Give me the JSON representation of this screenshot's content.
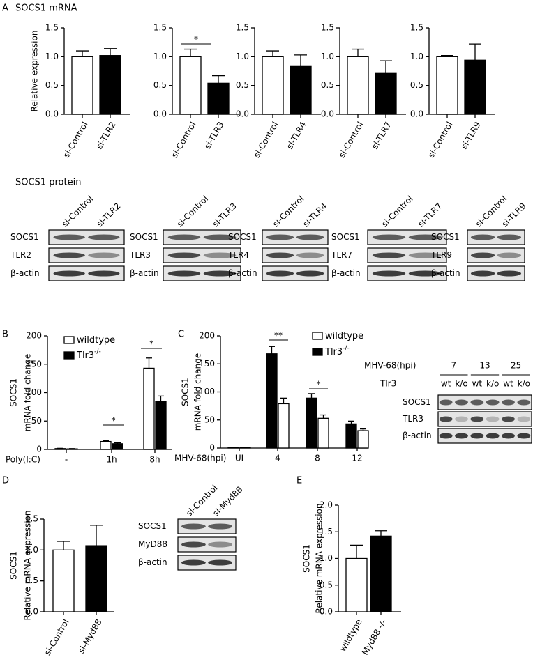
{
  "labels": {
    "panel_a": "A",
    "a_mrna_title": "SOCS1 mRNA",
    "a_protein_title": "SOCS1 protein",
    "panel_b": "B",
    "panel_c": "C",
    "panel_d": "D",
    "panel_e": "E"
  },
  "chart_data": [
    {
      "type": "bar",
      "ylabel": [
        "Relative expression"
      ],
      "categories": [
        "si-Control",
        "si-TLR2"
      ],
      "values": [
        1.0,
        1.02
      ],
      "errors": [
        0.1,
        0.12
      ],
      "colors": [
        "#ffffff",
        "#000000"
      ],
      "ylim": [
        0,
        1.5
      ],
      "yticks": [
        {
          "value": 0,
          "label": "0.0"
        },
        0.5,
        {
          "value": 1,
          "label": "1.0"
        },
        1.5
      ]
    },
    {
      "type": "bar",
      "categories": [
        "si-Control",
        "si-TLR3"
      ],
      "values": [
        1.0,
        0.54
      ],
      "errors": [
        0.13,
        0.13
      ],
      "colors": [
        "#ffffff",
        "#000000"
      ],
      "ylim": [
        0,
        1.5
      ],
      "yticks": [
        {
          "value": 0,
          "label": "0.0"
        },
        0.5,
        {
          "value": 1,
          "label": "1.0"
        },
        1.5
      ],
      "annotations": [
        "*"
      ]
    },
    {
      "type": "bar",
      "categories": [
        "si-Control",
        "si-TLR4"
      ],
      "values": [
        1.0,
        0.83
      ],
      "errors": [
        0.1,
        0.2
      ],
      "colors": [
        "#ffffff",
        "#000000"
      ],
      "ylim": [
        0,
        1.5
      ],
      "yticks": [
        {
          "value": 0,
          "label": "0.0"
        },
        0.5,
        {
          "value": 1,
          "label": "1.0"
        },
        1.5
      ]
    },
    {
      "type": "bar",
      "categories": [
        "si-Control",
        "si-TLR7"
      ],
      "values": [
        1.0,
        0.71
      ],
      "errors": [
        0.13,
        0.22
      ],
      "colors": [
        "#ffffff",
        "#000000"
      ],
      "ylim": [
        0,
        1.5
      ],
      "yticks": [
        {
          "value": 0,
          "label": "0.0"
        },
        0.5,
        {
          "value": 1,
          "label": "1.0"
        },
        1.5
      ]
    },
    {
      "type": "bar",
      "categories": [
        "si-Control",
        "si-TLR9"
      ],
      "values": [
        1.0,
        0.94
      ],
      "errors": [
        0.02,
        0.28
      ],
      "colors": [
        "#ffffff",
        "#000000"
      ],
      "ylim": [
        0,
        1.5
      ],
      "yticks": [
        {
          "value": 0,
          "label": "0.0"
        },
        0.5,
        {
          "value": 1,
          "label": "1.0"
        },
        1.5
      ]
    },
    {
      "type": "grouped_bar",
      "ylabel": [
        "SOCS1",
        "mRNA fold change"
      ],
      "xlabel": "Poly(I:C)",
      "categories": [
        "-",
        "1h",
        "8h"
      ],
      "series": [
        {
          "name": "wildtype",
          "color": "#ffffff",
          "values": [
            1.5,
            14,
            143
          ],
          "errors": [
            0.5,
            1.5,
            18
          ]
        },
        {
          "name": "Tlr3",
          "name_superscript": "-/-",
          "color": "#000000",
          "values": [
            1,
            10,
            85
          ],
          "errors": [
            0.5,
            1.5,
            9
          ]
        }
      ],
      "ylim": [
        0,
        200
      ],
      "yticks": [
        0,
        50,
        100,
        150,
        200
      ],
      "annotations": [
        "*",
        "*"
      ]
    },
    {
      "type": "grouped_bar",
      "ylabel": [
        "SOCS1",
        "mRNA fold change"
      ],
      "xlabel": "MHV-68(hpi)",
      "categories": [
        "UI",
        "4",
        "8",
        "12"
      ],
      "series": [
        {
          "name": "Tlr3",
          "name_superscript": "-/-",
          "color": "#000000",
          "values": [
            1,
            168,
            89,
            43
          ],
          "errors": [
            0.5,
            13,
            8,
            5
          ]
        },
        {
          "name": "wildtype",
          "color": "#ffffff",
          "values": [
            1,
            79,
            53,
            31
          ],
          "errors": [
            0.5,
            10,
            6,
            3
          ]
        }
      ],
      "ylim": [
        0,
        200
      ],
      "yticks": [
        0,
        50,
        100,
        150,
        200
      ],
      "annotations": [
        "**",
        "*"
      ]
    },
    {
      "type": "bar",
      "ylabel": [
        "SOCS1",
        "Relative mRNA expression"
      ],
      "categories": [
        "si-Control",
        "si-Myd88"
      ],
      "values": [
        1.0,
        1.07
      ],
      "errors": [
        0.14,
        0.33
      ],
      "colors": [
        "#ffffff",
        "#000000"
      ],
      "ylim": [
        0,
        1.5
      ],
      "yticks": [
        {
          "value": 0,
          "label": "0.0"
        },
        0.5,
        {
          "value": 1,
          "label": "1.0"
        },
        1.5
      ]
    },
    {
      "type": "bar",
      "ylabel": [
        "SOCS1",
        "Relative mRNA expression"
      ],
      "categories": [
        "wildtype",
        "Myd88 -/-"
      ],
      "values": [
        1.0,
        1.42
      ],
      "errors": [
        0.25,
        0.1
      ],
      "colors": [
        "#ffffff",
        "#000000"
      ],
      "ylim": [
        0,
        2
      ],
      "yticks": [
        {
          "value": 0,
          "label": "0.0"
        },
        0.5,
        {
          "value": 1,
          "label": "1.0"
        },
        1.5,
        {
          "value": 2,
          "label": "2.0"
        }
      ]
    }
  ],
  "blots": [
    {
      "columns": [
        "si-Control",
        "si-TLR2"
      ],
      "rows": [
        "SOCS1",
        "TLR2",
        "β-actin"
      ]
    },
    {
      "columns": [
        "si-Control",
        "si-TLR3"
      ],
      "rows": [
        "SOCS1",
        "TLR3",
        "β-actin"
      ]
    },
    {
      "columns": [
        "si-Control",
        "si-TLR4"
      ],
      "rows": [
        "SOCS1",
        "TLR4",
        "β-actin"
      ]
    },
    {
      "columns": [
        "si-Control",
        "si-TLR7"
      ],
      "rows": [
        "SOCS1",
        "TLR7",
        "β-actin"
      ]
    },
    {
      "columns": [
        "si-Control",
        "si-TLR9"
      ],
      "rows": [
        "SOCS1",
        "TLR9",
        "β-actin"
      ]
    },
    {
      "columns": [
        "si-Control",
        "si-Myd88"
      ],
      "rows": [
        "SOCS1",
        "MyD88",
        "β-actin"
      ]
    }
  ],
  "time_blot": {
    "header": "MHV-68(hpi)",
    "groups": [
      "7",
      "13",
      "25"
    ],
    "lane_label": "Tlr3",
    "lanes": [
      "wt",
      "k/o",
      "wt",
      "k/o",
      "wt",
      "k/o"
    ],
    "rows": [
      "SOCS1",
      "TLR3",
      "β-actin"
    ]
  }
}
